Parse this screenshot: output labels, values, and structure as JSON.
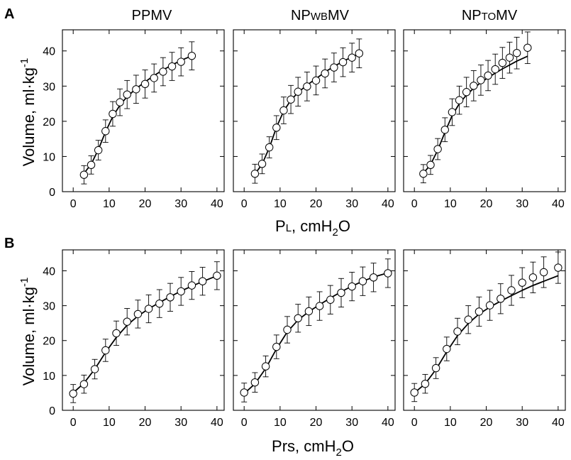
{
  "figure": {
    "panel_labels": [
      "A",
      "B"
    ],
    "column_titles": [
      {
        "main1": "PPMV",
        "small": "",
        "main2": ""
      },
      {
        "main1": "NP",
        "small": "WB",
        "main2": "MV"
      },
      {
        "main1": "NP",
        "small": "TO",
        "main2": "MV"
      }
    ],
    "ylabel": {
      "base": "Volume, ml·kg",
      "sup": "-1"
    },
    "xlabel_A": {
      "main": "P",
      "small": "L",
      "rest": ", cmH",
      "sub": "2",
      "end": "O"
    },
    "xlabel_B": {
      "main": "Prs",
      "rest": ", cmH",
      "sub": "2",
      "end": "O"
    },
    "colors": {
      "marker_fill": "#ffffff",
      "line": "#000000",
      "frame": "#000000"
    }
  },
  "chart_data": [
    {
      "panel": "A",
      "title": "PPMV",
      "type": "scatter",
      "xlabel": "PL, cmH2O",
      "ylabel": "Volume, ml·kg-1",
      "xlim": [
        -3,
        42
      ],
      "ylim": [
        0,
        46
      ],
      "xticks": [
        0,
        10,
        20,
        30,
        40
      ],
      "yticks": [
        0,
        10,
        20,
        30,
        40
      ],
      "x": [
        3,
        5,
        7,
        9,
        11,
        13,
        15,
        17.5,
        20,
        22.5,
        25,
        27.5,
        30,
        33
      ],
      "y": [
        4.8,
        7.6,
        11.8,
        17.2,
        22.1,
        25.4,
        27.6,
        29.1,
        30.6,
        32.3,
        34.1,
        35.6,
        36.9,
        38.6
      ],
      "err": [
        2.6,
        2.6,
        2.8,
        3.2,
        3.5,
        3.8,
        4.0,
        4.0,
        4.0,
        4.0,
        4.0,
        4.0,
        4.0,
        4.0
      ],
      "fit_x": [
        3,
        5,
        7,
        9,
        11,
        13,
        15,
        17.5,
        20,
        22.5,
        25,
        27.5,
        30,
        33
      ],
      "fit_y": [
        5.2,
        7.8,
        12.0,
        17.0,
        21.3,
        24.6,
        27.0,
        29.3,
        31.2,
        33.0,
        34.6,
        36.0,
        37.3,
        38.6
      ]
    },
    {
      "panel": "A",
      "title": "NPWBMV",
      "type": "scatter",
      "xlabel": "PL, cmH2O",
      "ylabel": "Volume, ml·kg-1",
      "xlim": [
        -3,
        42
      ],
      "ylim": [
        0,
        46
      ],
      "xticks": [
        0,
        10,
        20,
        30,
        40
      ],
      "yticks": [
        0,
        10,
        20,
        30,
        40
      ],
      "x": [
        3,
        5,
        7,
        9,
        11,
        13,
        15,
        17.5,
        20,
        22.5,
        25,
        27.5,
        30,
        32
      ],
      "y": [
        5.1,
        7.9,
        12.6,
        18.2,
        23.1,
        26.2,
        28.4,
        29.9,
        31.6,
        33.6,
        35.3,
        36.8,
        38.1,
        39.3
      ],
      "err": [
        2.7,
        2.8,
        3.0,
        3.4,
        3.8,
        4.0,
        4.1,
        4.1,
        4.1,
        4.1,
        4.1,
        4.1,
        4.1,
        4.1
      ],
      "fit_x": [
        3,
        5,
        7,
        9,
        11,
        13,
        15,
        17.5,
        20,
        22.5,
        25,
        27.5,
        30,
        32
      ],
      "fit_y": [
        5.0,
        7.8,
        12.5,
        18.3,
        22.9,
        26.0,
        28.2,
        30.3,
        32.1,
        34.0,
        35.6,
        37.0,
        38.3,
        39.2
      ]
    },
    {
      "panel": "A",
      "title": "NPTOMV",
      "type": "scatter",
      "xlabel": "PL, cmH2O",
      "ylabel": "Volume, ml·kg-1",
      "xlim": [
        -3,
        42
      ],
      "ylim": [
        0,
        46
      ],
      "xticks": [
        0,
        10,
        20,
        30,
        40
      ],
      "yticks": [
        0,
        10,
        20,
        30,
        40
      ],
      "x": [
        2.5,
        4.5,
        6.5,
        8.5,
        10.5,
        12.5,
        14.5,
        16.5,
        18.5,
        20.5,
        22.5,
        24.5,
        26.5,
        28.5,
        31.5
      ],
      "y": [
        5.1,
        7.6,
        12.1,
        17.6,
        22.6,
        26.0,
        28.3,
        30.1,
        31.7,
        33.0,
        34.8,
        36.6,
        38.1,
        39.4,
        40.9
      ],
      "err": [
        2.6,
        2.7,
        3.0,
        3.4,
        3.8,
        4.0,
        4.2,
        4.3,
        4.3,
        4.3,
        4.3,
        4.4,
        4.4,
        4.5,
        4.5
      ],
      "fit_x": [
        2.5,
        4.5,
        6.5,
        8.5,
        10.5,
        12.5,
        14.5,
        16.5,
        18.5,
        20.5,
        22.5,
        24.5,
        26.5,
        28.5,
        31.5
      ],
      "fit_y": [
        5.2,
        7.7,
        11.8,
        16.9,
        21.6,
        25.0,
        27.5,
        29.4,
        31.0,
        32.4,
        33.7,
        34.9,
        36.0,
        37.1,
        38.5
      ]
    },
    {
      "panel": "B",
      "title": "PPMV",
      "type": "scatter",
      "xlabel": "Prs, cmH2O",
      "ylabel": "Volume, ml·kg-1",
      "xlim": [
        -3,
        42
      ],
      "ylim": [
        0,
        46
      ],
      "xticks": [
        0,
        10,
        20,
        30,
        40
      ],
      "yticks": [
        0,
        10,
        20,
        30,
        40
      ],
      "x": [
        0,
        3,
        6,
        9,
        12,
        15,
        18,
        21,
        24,
        27,
        30,
        33,
        36,
        40
      ],
      "y": [
        4.8,
        7.5,
        11.8,
        17.2,
        22.1,
        25.4,
        27.6,
        29.1,
        30.6,
        32.4,
        34.1,
        35.8,
        37.0,
        38.6
      ],
      "err": [
        2.6,
        2.6,
        2.8,
        3.2,
        3.5,
        3.8,
        4.0,
        4.0,
        4.0,
        4.0,
        4.0,
        4.0,
        4.0,
        4.0
      ],
      "fit_x": [
        0,
        3,
        6,
        9,
        12,
        15,
        18,
        21,
        24,
        27,
        30,
        33,
        36,
        40
      ],
      "fit_y": [
        5.0,
        7.8,
        11.8,
        16.6,
        20.9,
        24.4,
        27.0,
        29.1,
        30.9,
        32.6,
        34.2,
        35.6,
        36.9,
        38.6
      ]
    },
    {
      "panel": "B",
      "title": "NPWBMV",
      "type": "scatter",
      "xlabel": "Prs, cmH2O",
      "ylabel": "Volume, ml·kg-1",
      "xlim": [
        -3,
        42
      ],
      "ylim": [
        0,
        46
      ],
      "xticks": [
        0,
        10,
        20,
        30,
        40
      ],
      "yticks": [
        0,
        10,
        20,
        30,
        40
      ],
      "x": [
        0,
        3,
        6,
        9,
        12,
        15,
        18,
        21,
        24,
        27,
        30,
        33,
        36,
        40
      ],
      "y": [
        5.1,
        8.0,
        12.6,
        18.2,
        23.1,
        26.4,
        28.4,
        29.9,
        31.7,
        33.7,
        35.5,
        37.0,
        38.1,
        39.3
      ],
      "err": [
        2.7,
        2.8,
        3.0,
        3.4,
        3.8,
        4.0,
        4.1,
        4.1,
        4.1,
        4.1,
        4.1,
        4.1,
        4.1,
        4.1
      ],
      "fit_x": [
        0,
        3,
        6,
        9,
        12,
        15,
        18,
        21,
        24,
        27,
        30,
        33,
        36,
        40
      ],
      "fit_y": [
        4.8,
        7.6,
        12.0,
        17.6,
        22.5,
        25.9,
        28.3,
        30.3,
        32.2,
        34.0,
        35.6,
        37.0,
        38.2,
        39.4
      ]
    },
    {
      "panel": "B",
      "title": "NPTOMV",
      "type": "scatter",
      "xlabel": "Prs, cmH2O",
      "ylabel": "Volume, ml·kg-1",
      "xlim": [
        -3,
        42
      ],
      "ylim": [
        0,
        46
      ],
      "xticks": [
        0,
        10,
        20,
        30,
        40
      ],
      "yticks": [
        0,
        10,
        20,
        30,
        40
      ],
      "x": [
        0,
        3,
        6,
        9,
        12,
        15,
        18,
        21,
        24,
        27,
        30,
        33,
        36,
        40
      ],
      "y": [
        5.1,
        7.6,
        12.1,
        17.6,
        22.6,
        26.0,
        28.3,
        30.1,
        32.0,
        34.4,
        36.6,
        38.1,
        39.6,
        40.9
      ],
      "err": [
        2.6,
        2.7,
        3.0,
        3.4,
        3.8,
        4.0,
        4.2,
        4.3,
        4.3,
        4.3,
        4.3,
        4.4,
        4.4,
        4.5
      ],
      "fit_x": [
        0,
        3,
        6,
        9,
        12,
        15,
        18,
        21,
        24,
        27,
        30,
        33,
        36,
        40
      ],
      "fit_y": [
        5.0,
        7.6,
        11.7,
        16.8,
        21.4,
        24.9,
        27.6,
        29.6,
        31.3,
        32.9,
        34.4,
        35.8,
        37.0,
        38.6
      ]
    }
  ]
}
